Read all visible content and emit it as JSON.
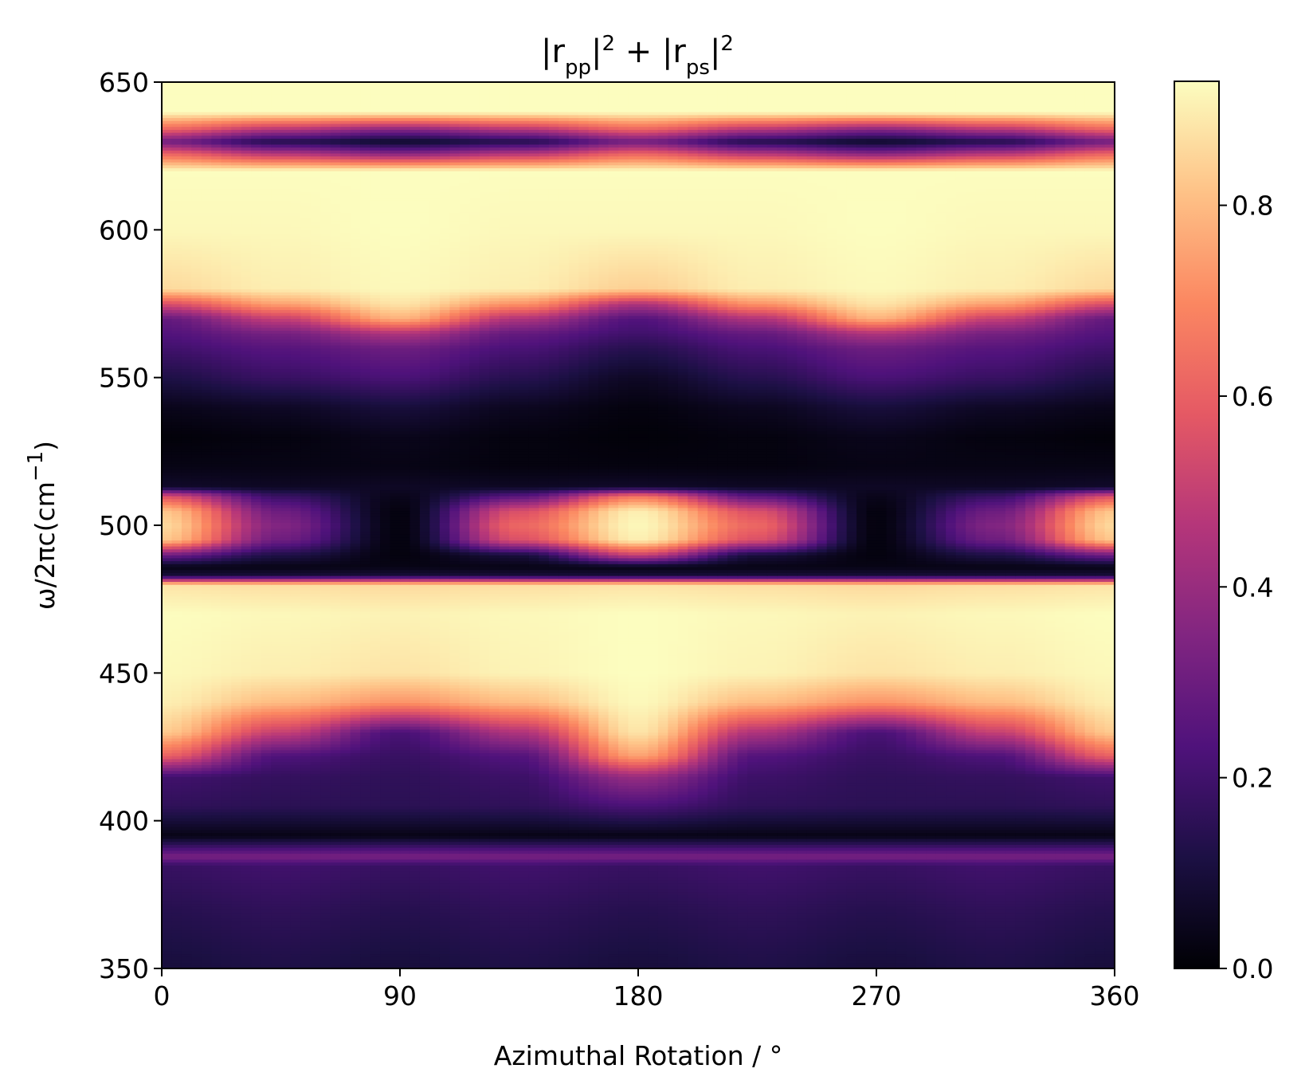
{
  "chart_data": {
    "type": "heatmap",
    "title": {
      "text": "|rpp|2 + |rps|2",
      "parts": [
        {
          "t": "|r"
        },
        {
          "t": "pp",
          "sub": true
        },
        {
          "t": "|"
        },
        {
          "t": "2",
          "sup": true
        },
        {
          "t": " + |r"
        },
        {
          "t": "ps",
          "sub": true
        },
        {
          "t": "|"
        },
        {
          "t": "2",
          "sup": true
        }
      ]
    },
    "xlabel": "Azimuthal Rotation / °",
    "ylabel": {
      "text": "ω/2πc(cm−1)",
      "parts": [
        {
          "t": "ω/2πc(cm"
        },
        {
          "t": "−1",
          "sup": true
        },
        {
          "t": ")"
        }
      ]
    },
    "xlim": [
      0,
      360
    ],
    "ylim": [
      350,
      650
    ],
    "xticks": [
      0,
      90,
      180,
      270,
      360
    ],
    "xtick_labels": [
      "0",
      "90",
      "180",
      "270",
      "360"
    ],
    "yticks": [
      350,
      400,
      450,
      500,
      550,
      600,
      650
    ],
    "ytick_labels": [
      "350",
      "400",
      "450",
      "500",
      "550",
      "600",
      "650"
    ],
    "colormap": "magma",
    "colormap_stops": [
      "#000004",
      "#1c1044",
      "#4f127b",
      "#812581",
      "#b5367a",
      "#e55964",
      "#fb8761",
      "#fec287",
      "#fcfdbf"
    ],
    "colorbar": {
      "vmin": 0.0,
      "vmax": 0.93,
      "ticks": [
        0.0,
        0.2,
        0.4,
        0.6,
        0.8
      ],
      "tick_labels": [
        "0.0",
        "0.2",
        "0.4",
        "0.6",
        "0.8"
      ]
    },
    "grid": false,
    "x": [
      0,
      45,
      90,
      135,
      180,
      225,
      270,
      315,
      360
    ],
    "y": [
      350,
      370,
      385,
      388,
      395,
      405,
      415,
      422,
      430,
      440,
      450,
      470,
      480,
      483,
      486,
      490,
      495,
      500,
      505,
      510,
      513,
      520,
      530,
      540,
      550,
      560,
      565,
      570,
      575,
      580,
      600,
      620,
      626,
      630,
      634,
      640,
      650
    ],
    "z": [
      [
        0.1,
        0.12,
        0.1,
        0.12,
        0.1,
        0.12,
        0.1,
        0.12,
        0.1
      ],
      [
        0.14,
        0.16,
        0.14,
        0.16,
        0.14,
        0.16,
        0.14,
        0.16,
        0.14
      ],
      [
        0.18,
        0.2,
        0.18,
        0.2,
        0.18,
        0.2,
        0.18,
        0.2,
        0.18
      ],
      [
        0.33,
        0.33,
        0.33,
        0.33,
        0.33,
        0.33,
        0.33,
        0.33,
        0.33
      ],
      [
        0.03,
        0.03,
        0.03,
        0.03,
        0.03,
        0.03,
        0.03,
        0.03,
        0.03
      ],
      [
        0.16,
        0.15,
        0.15,
        0.16,
        0.22,
        0.16,
        0.15,
        0.15,
        0.16
      ],
      [
        0.2,
        0.17,
        0.16,
        0.19,
        0.4,
        0.19,
        0.16,
        0.17,
        0.2
      ],
      [
        0.6,
        0.23,
        0.18,
        0.24,
        0.75,
        0.24,
        0.18,
        0.23,
        0.6
      ],
      [
        0.83,
        0.5,
        0.22,
        0.45,
        0.88,
        0.45,
        0.22,
        0.5,
        0.83
      ],
      [
        0.9,
        0.8,
        0.72,
        0.8,
        0.92,
        0.8,
        0.72,
        0.8,
        0.9
      ],
      [
        0.92,
        0.9,
        0.88,
        0.91,
        0.93,
        0.91,
        0.88,
        0.9,
        0.92
      ],
      [
        0.93,
        0.92,
        0.91,
        0.92,
        0.93,
        0.92,
        0.91,
        0.92,
        0.93
      ],
      [
        0.88,
        0.87,
        0.86,
        0.87,
        0.88,
        0.87,
        0.86,
        0.87,
        0.88
      ],
      [
        0.1,
        0.1,
        0.1,
        0.1,
        0.1,
        0.1,
        0.1,
        0.1,
        0.1
      ],
      [
        0.03,
        0.03,
        0.03,
        0.03,
        0.03,
        0.03,
        0.03,
        0.03,
        0.03
      ],
      [
        0.3,
        0.12,
        0.02,
        0.1,
        0.5,
        0.1,
        0.02,
        0.12,
        0.3
      ],
      [
        0.82,
        0.3,
        0.02,
        0.55,
        0.9,
        0.55,
        0.02,
        0.3,
        0.82
      ],
      [
        0.86,
        0.35,
        0.02,
        0.62,
        0.92,
        0.62,
        0.02,
        0.35,
        0.86
      ],
      [
        0.82,
        0.3,
        0.02,
        0.55,
        0.9,
        0.55,
        0.02,
        0.3,
        0.82
      ],
      [
        0.55,
        0.18,
        0.04,
        0.25,
        0.65,
        0.25,
        0.04,
        0.18,
        0.55
      ],
      [
        0.07,
        0.06,
        0.06,
        0.06,
        0.07,
        0.06,
        0.06,
        0.06,
        0.07
      ],
      [
        0.03,
        0.03,
        0.03,
        0.02,
        0.02,
        0.02,
        0.03,
        0.03,
        0.03
      ],
      [
        0.01,
        0.02,
        0.04,
        0.02,
        0.01,
        0.02,
        0.04,
        0.02,
        0.01
      ],
      [
        0.04,
        0.06,
        0.1,
        0.05,
        0.02,
        0.05,
        0.1,
        0.06,
        0.04
      ],
      [
        0.12,
        0.18,
        0.22,
        0.14,
        0.06,
        0.14,
        0.22,
        0.18,
        0.12
      ],
      [
        0.2,
        0.25,
        0.3,
        0.22,
        0.14,
        0.22,
        0.3,
        0.25,
        0.2
      ],
      [
        0.24,
        0.32,
        0.45,
        0.28,
        0.2,
        0.28,
        0.45,
        0.32,
        0.24
      ],
      [
        0.28,
        0.5,
        0.78,
        0.45,
        0.24,
        0.45,
        0.78,
        0.5,
        0.28
      ],
      [
        0.55,
        0.75,
        0.88,
        0.72,
        0.45,
        0.72,
        0.88,
        0.75,
        0.55
      ],
      [
        0.86,
        0.9,
        0.92,
        0.9,
        0.84,
        0.9,
        0.92,
        0.9,
        0.86
      ],
      [
        0.92,
        0.92,
        0.93,
        0.92,
        0.92,
        0.92,
        0.93,
        0.92,
        0.92
      ],
      [
        0.93,
        0.93,
        0.93,
        0.93,
        0.93,
        0.93,
        0.93,
        0.93,
        0.93
      ],
      [
        0.6,
        0.45,
        0.35,
        0.45,
        0.6,
        0.45,
        0.35,
        0.45,
        0.6
      ],
      [
        0.3,
        0.12,
        0.06,
        0.12,
        0.3,
        0.12,
        0.06,
        0.12,
        0.3
      ],
      [
        0.6,
        0.45,
        0.35,
        0.45,
        0.6,
        0.45,
        0.35,
        0.45,
        0.6
      ],
      [
        0.93,
        0.93,
        0.93,
        0.93,
        0.93,
        0.93,
        0.93,
        0.93,
        0.93
      ],
      [
        0.93,
        0.93,
        0.93,
        0.93,
        0.93,
        0.93,
        0.93,
        0.93,
        0.93
      ]
    ]
  }
}
